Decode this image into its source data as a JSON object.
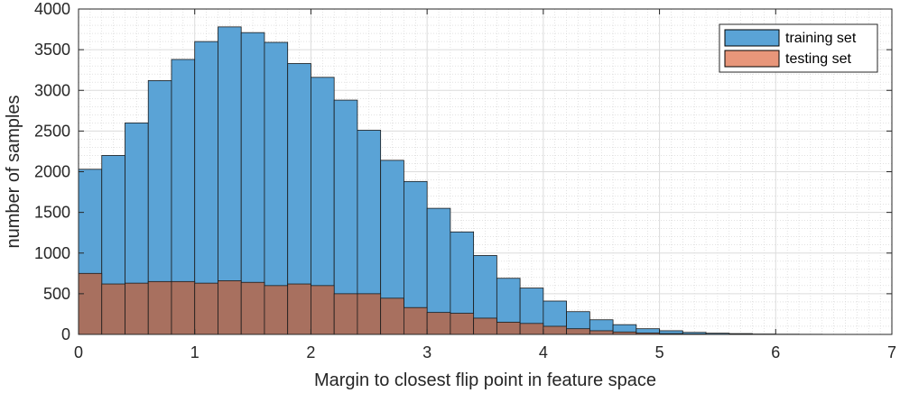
{
  "chart_data": {
    "type": "bar",
    "xlabel": "Margin to closest flip point in feature space",
    "ylabel": "number of samples",
    "xlim": [
      0,
      7
    ],
    "ylim": [
      0,
      4000
    ],
    "xticks": [
      "0",
      "1",
      "2",
      "3",
      "4",
      "5",
      "6",
      "7"
    ],
    "yticks": [
      "0",
      "500",
      "1000",
      "1500",
      "2000",
      "2500",
      "3000",
      "3500",
      "4000"
    ],
    "grid": "major and minor, dotted",
    "legend_position": "top-right",
    "bin_width": 0.2,
    "bin_edges": [
      0,
      0.2,
      0.4,
      0.6,
      0.8,
      1.0,
      1.2,
      1.4,
      1.6,
      1.8,
      2.0,
      2.2,
      2.4,
      2.6,
      2.8,
      3.0,
      3.2,
      3.4,
      3.6,
      3.8,
      4.0,
      4.2,
      4.4,
      4.6,
      4.8,
      5.0,
      5.2,
      5.4,
      5.6,
      5.8,
      6.0,
      6.2,
      6.4,
      6.6,
      6.8,
      7.0
    ],
    "series": [
      {
        "name": "training set",
        "color": "#5aa3d6",
        "values": [
          2030,
          2200,
          2600,
          3120,
          3380,
          3600,
          3780,
          3710,
          3590,
          3330,
          3160,
          2880,
          2510,
          2140,
          1880,
          1550,
          1260,
          970,
          690,
          570,
          410,
          280,
          180,
          120,
          70,
          45,
          25,
          15,
          10,
          5,
          3,
          2,
          1,
          1,
          0
        ]
      },
      {
        "name": "testing set",
        "color": "#a8705f",
        "legend_color": "#e8967a",
        "values": [
          750,
          620,
          630,
          650,
          650,
          630,
          660,
          640,
          600,
          620,
          600,
          500,
          500,
          445,
          330,
          270,
          260,
          200,
          150,
          135,
          100,
          70,
          45,
          30,
          18,
          10,
          5,
          3,
          2,
          1,
          1,
          0,
          0,
          0,
          0
        ]
      }
    ]
  }
}
